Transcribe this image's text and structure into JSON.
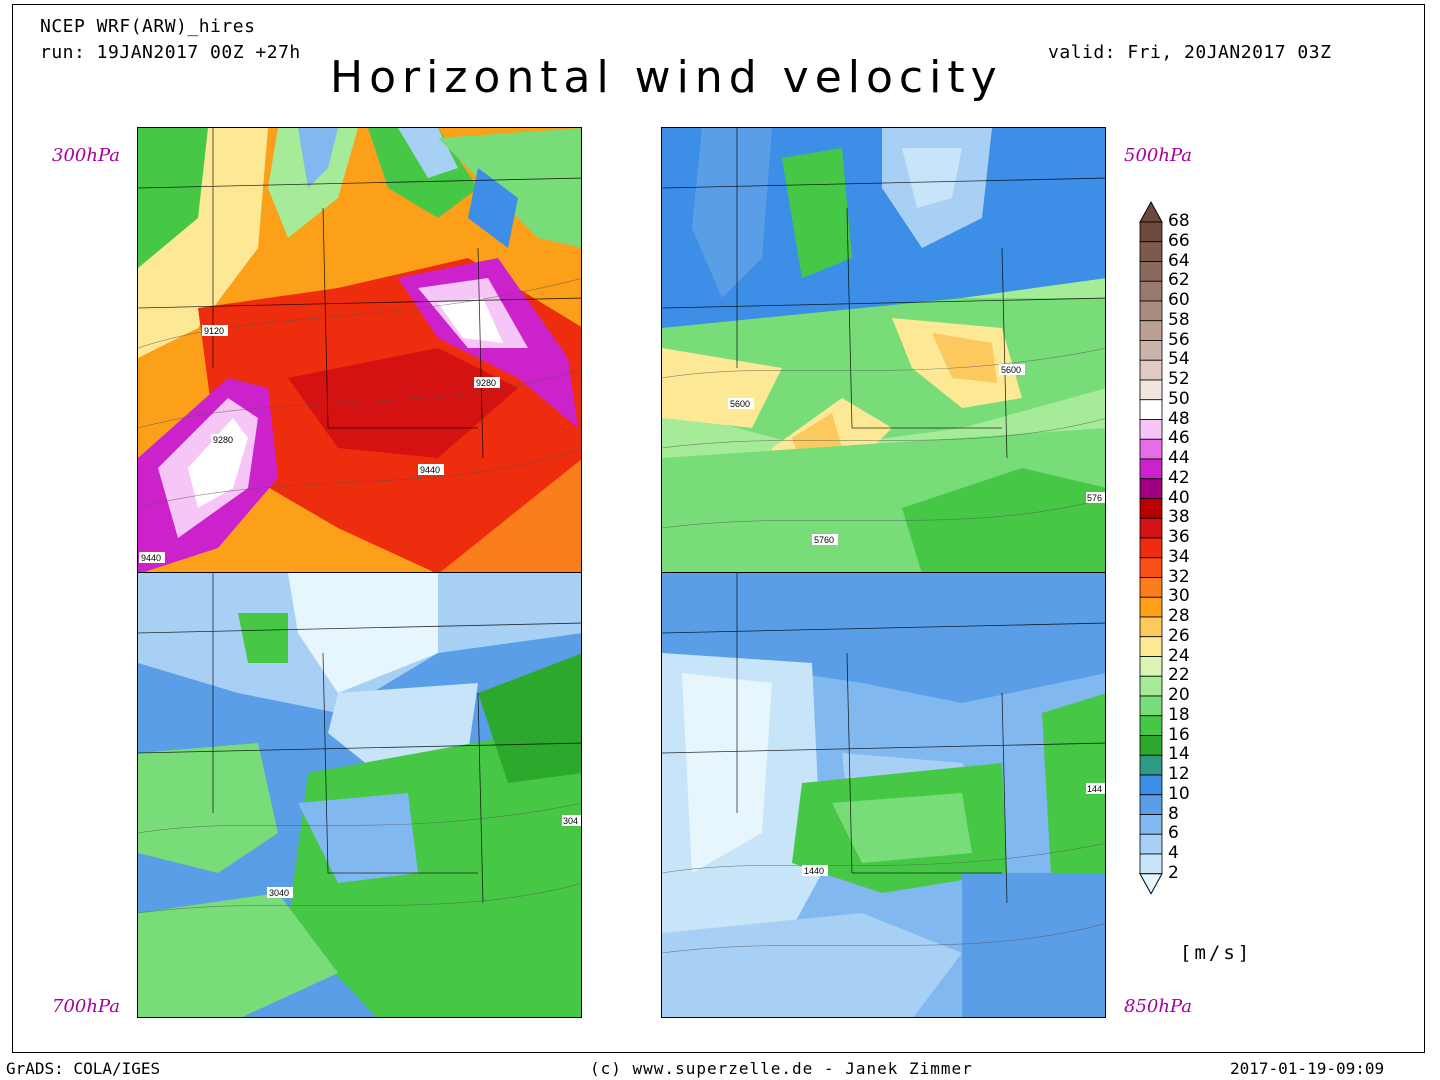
{
  "header": {
    "model": "NCEP WRF(ARW)_hires",
    "run": "run: 19JAN2017 00Z +27h",
    "valid": "valid: Fri, 20JAN2017 03Z",
    "title": "Horizontal wind velocity"
  },
  "panels": [
    {
      "level": "300hPa",
      "contour_labels": [
        "9120",
        "9280",
        "9280",
        "9440",
        "9440"
      ]
    },
    {
      "level": "500hPa",
      "contour_labels": [
        "5600",
        "5600",
        "5760",
        "576"
      ]
    },
    {
      "level": "700hPa",
      "contour_labels": [
        "3040",
        "304"
      ]
    },
    {
      "level": "850hPa",
      "contour_labels": [
        "1440",
        "144"
      ]
    }
  ],
  "colorbar": {
    "unit": "[m/s]",
    "labels": [
      "68",
      "66",
      "64",
      "62",
      "60",
      "58",
      "56",
      "54",
      "52",
      "50",
      "48",
      "46",
      "44",
      "42",
      "40",
      "38",
      "36",
      "34",
      "32",
      "30",
      "28",
      "26",
      "24",
      "22",
      "20",
      "18",
      "16",
      "14",
      "12",
      "10",
      "8",
      "6",
      "4",
      "2"
    ],
    "colors": [
      "#6e4a3e",
      "#7c5a4e",
      "#8a6a5e",
      "#9a7a6e",
      "#ab8c80",
      "#bca094",
      "#cdb4aa",
      "#dfcbc2",
      "#f2e6e0",
      "#ffffff",
      "#f6c6f6",
      "#e56ee6",
      "#cc22cc",
      "#a00080",
      "#b80000",
      "#d41212",
      "#ee2c0e",
      "#f84e18",
      "#fa7e1c",
      "#fca01a",
      "#fcc95e",
      "#fde896",
      "#d8f5b4",
      "#a6eb98",
      "#78dc78",
      "#46c846",
      "#2ca82c",
      "#2e9a86",
      "#3c8ee6",
      "#5a9ee8",
      "#82b8f0",
      "#a8d0f4",
      "#c8e4f8",
      "#e6f6fc"
    ]
  },
  "footer": {
    "left": "GrADS: COLA/IGES",
    "center": "(c) www.superzelle.de - Janek Zimmer",
    "right": "2017-01-19-09:09"
  }
}
